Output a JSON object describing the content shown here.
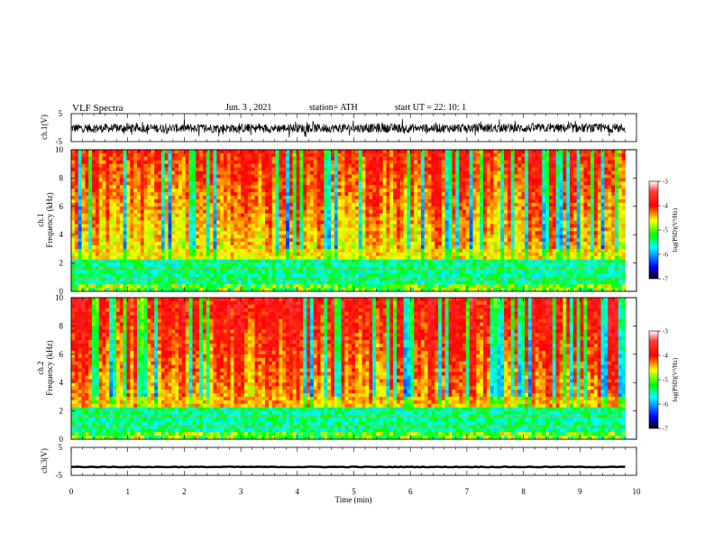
{
  "header": {
    "title": "VLF  Spectra",
    "date": "Jun. 3  , 2021",
    "station": "station= ATH",
    "start": "start  UT  =   22: 10: 1"
  },
  "chart_data": [
    {
      "type": "line",
      "panel": "ch1-waveform",
      "ylabel": "ch.1(V)",
      "ylim": [
        -5,
        5
      ],
      "y_ticks": [
        "5",
        "-5"
      ],
      "xlim": [
        0,
        10
      ],
      "description_series": "noisy waveform centred near 0 V, spanning roughly -3 to +2 V, 0 to 9.8 min"
    },
    {
      "type": "heatmap",
      "panel": "ch1-spectrogram",
      "ylabel_line1": "ch.1",
      "ylabel_line2": "Frequency (kHz)",
      "ylim": [
        0,
        10
      ],
      "y_ticks": [
        "10",
        "8",
        "6",
        "4",
        "2",
        "0"
      ],
      "xlim": [
        0,
        9.8
      ],
      "colorbar": {
        "label": "log(PSD)(V²/Hz)",
        "range": [
          -7,
          -3
        ],
        "ticks": [
          "-3",
          "-4",
          "-5",
          "-6",
          "-7"
        ]
      }
    },
    {
      "type": "heatmap",
      "panel": "ch2-spectrogram",
      "ylabel_line1": "ch.2",
      "ylabel_line2": "Frequency (kHz)",
      "ylim": [
        0,
        10
      ],
      "y_ticks": [
        "10",
        "8",
        "6",
        "4",
        "2",
        "0"
      ],
      "xlim": [
        0,
        9.8
      ],
      "colorbar": {
        "label": "log(PSD)(V²/Hz)",
        "range": [
          -7,
          -3
        ],
        "ticks": [
          "-3",
          "-4",
          "-5",
          "-6",
          "-7"
        ]
      }
    },
    {
      "type": "line",
      "panel": "ch3-waveform",
      "ylabel": "ch.3(V)",
      "ylim": [
        -5,
        5
      ],
      "y_ticks": [
        "5",
        "-5"
      ],
      "xlim": [
        0,
        10
      ],
      "description_series": "flat line near -2 V"
    }
  ],
  "x_axis": {
    "label": "Time  (min)",
    "ticks": [
      "0",
      "1",
      "2",
      "3",
      "4",
      "5",
      "6",
      "7",
      "8",
      "9",
      "10"
    ]
  },
  "colors": {
    "frame": "#000000",
    "waveform": "#000000",
    "colormap": [
      "#000000",
      "#0000ff",
      "#00ffff",
      "#00ff00",
      "#ffff00",
      "#ff0000",
      "#ffffff"
    ]
  }
}
